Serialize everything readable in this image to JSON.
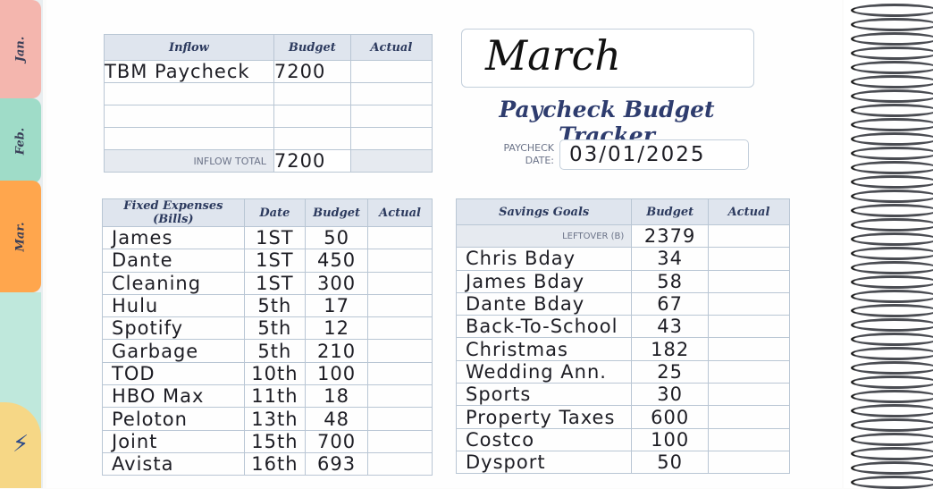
{
  "tabs": {
    "jan": "Jan.",
    "feb": "Feb.",
    "mar": "Mar."
  },
  "inflow": {
    "headers": [
      "Inflow",
      "Budget",
      "Actual"
    ],
    "rows": [
      {
        "name": "TBM Paycheck",
        "budget": "7200",
        "actual": ""
      },
      {
        "name": "",
        "budget": "",
        "actual": ""
      },
      {
        "name": "",
        "budget": "",
        "actual": ""
      },
      {
        "name": "",
        "budget": "",
        "actual": ""
      }
    ],
    "total_label": "INFLOW TOTAL",
    "total_value": "7200"
  },
  "month": "March",
  "title": "Paycheck Budget Tracker",
  "date": {
    "label_1": "PAYCHECK",
    "label_2": "DATE:",
    "value": "03/01/2025"
  },
  "fixed": {
    "headers": [
      "Fixed Expenses (Bills)",
      "Date",
      "Budget",
      "Actual"
    ],
    "rows": [
      {
        "name": "James",
        "date": "1ST",
        "budget": "50"
      },
      {
        "name": "Dante",
        "date": "1ST",
        "budget": "450"
      },
      {
        "name": "Cleaning",
        "date": "1ST",
        "budget": "300"
      },
      {
        "name": "Hulu",
        "date": "5th",
        "budget": "17"
      },
      {
        "name": "Spotify",
        "date": "5th",
        "budget": "12"
      },
      {
        "name": "Garbage",
        "date": "5th",
        "budget": "210"
      },
      {
        "name": "TOD",
        "date": "10th",
        "budget": "100"
      },
      {
        "name": "HBO Max",
        "date": "11th",
        "budget": "18"
      },
      {
        "name": "Peloton",
        "date": "13th",
        "budget": "48"
      },
      {
        "name": "Joint",
        "date": "15th",
        "budget": "700"
      },
      {
        "name": "Avista",
        "date": "16th",
        "budget": "693"
      }
    ]
  },
  "savings": {
    "headers": [
      "Savings Goals",
      "Budget",
      "Actual"
    ],
    "leftover_label": "LEFTOVER (B)",
    "leftover_value": "2379",
    "rows": [
      {
        "name": "Chris Bday",
        "budget": "34"
      },
      {
        "name": "James Bday",
        "budget": "58"
      },
      {
        "name": "Dante Bday",
        "budget": "67"
      },
      {
        "name": "Back-To-School",
        "budget": "43"
      },
      {
        "name": "Christmas",
        "budget": "182"
      },
      {
        "name": "Wedding Ann.",
        "budget": "25"
      },
      {
        "name": "Sports",
        "budget": "30"
      },
      {
        "name": "Property Taxes",
        "budget": "600"
      },
      {
        "name": "Costco",
        "budget": "100"
      },
      {
        "name": "Dysport",
        "budget": "50"
      }
    ]
  }
}
